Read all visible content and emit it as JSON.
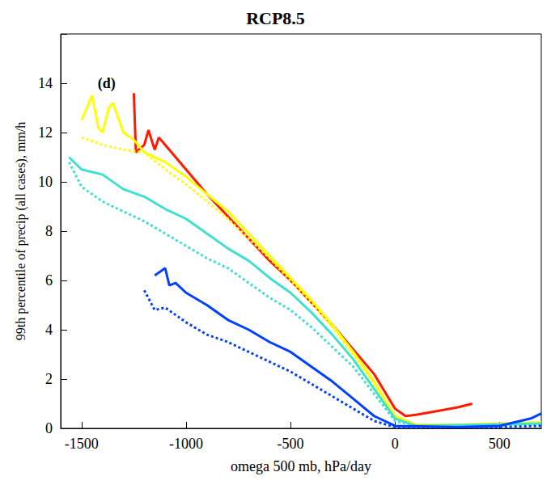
{
  "chart_data": {
    "type": "line",
    "title": "RCP8.5",
    "x_label": "omega 500 mb, hPa/day",
    "y_label": "99th percentile of precip (all cases), mm/h",
    "xlim": [
      -1600,
      700
    ],
    "xticks": [
      -1500,
      -1000,
      -500,
      0,
      500
    ],
    "ylim": [
      0,
      16
    ],
    "yticks": [
      0,
      2,
      4,
      6,
      8,
      10,
      12,
      14
    ],
    "grid": false,
    "annotations": [
      {
        "text": "(d)",
        "x": -1380,
        "y": 14
      }
    ],
    "series": [
      {
        "color": "#ff1a00",
        "line_style": "solid",
        "x": [
          -1250,
          -1240,
          -1200,
          -1180,
          -1150,
          -1130,
          -1100,
          -1050,
          -1000,
          -900,
          -800,
          -700,
          -600,
          -500,
          -400,
          -300,
          -200,
          -100,
          -50,
          0,
          50,
          100,
          200,
          300,
          370
        ],
        "values": [
          13.6,
          11.2,
          11.5,
          12.1,
          11.3,
          11.8,
          11.5,
          11.0,
          10.5,
          9.5,
          8.6,
          7.7,
          6.8,
          6.0,
          5.1,
          4.2,
          3.2,
          2.2,
          1.5,
          0.8,
          0.5,
          0.55,
          0.7,
          0.85,
          1.0
        ]
      },
      {
        "color": "#ffff00",
        "line_style": "solid",
        "x": [
          -1500,
          -1450,
          -1420,
          -1400,
          -1370,
          -1350,
          -1300,
          -1250,
          -1200,
          -1100,
          -1000,
          -900,
          -800,
          -700,
          -600,
          -500,
          -400,
          -300,
          -200,
          -100,
          0,
          100,
          300,
          500,
          700
        ],
        "values": [
          12.5,
          13.5,
          12.2,
          12.0,
          13.0,
          13.2,
          12.0,
          11.7,
          11.2,
          10.8,
          10.2,
          9.5,
          8.8,
          7.9,
          7.0,
          6.1,
          5.2,
          4.2,
          3.1,
          1.9,
          0.5,
          0.15,
          0.15,
          0.2,
          0.25
        ]
      },
      {
        "color": "#ffff00",
        "line_style": "dotted",
        "x": [
          -1500,
          -1400,
          -1300,
          -1200,
          -1100,
          -1000,
          -900,
          -800,
          -700,
          -600,
          -500,
          -400,
          -300,
          -200,
          -100,
          0,
          100,
          700
        ],
        "values": [
          11.8,
          11.5,
          11.3,
          11.2,
          10.5,
          9.9,
          9.2,
          8.5,
          7.7,
          6.9,
          6.0,
          5.1,
          4.1,
          3.0,
          1.8,
          0.4,
          0.1,
          0.15
        ]
      },
      {
        "color": "#40e0d0",
        "line_style": "solid",
        "x": [
          -1560,
          -1500,
          -1400,
          -1300,
          -1200,
          -1100,
          -1000,
          -900,
          -800,
          -700,
          -600,
          -500,
          -400,
          -300,
          -200,
          -100,
          0,
          100,
          700
        ],
        "values": [
          11.0,
          10.5,
          10.3,
          9.7,
          9.4,
          8.9,
          8.5,
          7.9,
          7.3,
          6.8,
          6.1,
          5.5,
          4.7,
          3.8,
          2.8,
          1.6,
          0.4,
          0.1,
          0.2
        ]
      },
      {
        "color": "#40e0d0",
        "line_style": "dotted",
        "x": [
          -1560,
          -1500,
          -1400,
          -1300,
          -1200,
          -1100,
          -1000,
          -900,
          -800,
          -700,
          -600,
          -500,
          -400,
          -300,
          -200,
          -100,
          0,
          100,
          700
        ],
        "values": [
          10.8,
          9.8,
          9.2,
          8.8,
          8.4,
          7.9,
          7.4,
          6.9,
          6.5,
          5.9,
          5.3,
          4.8,
          4.1,
          3.3,
          2.5,
          1.4,
          0.3,
          0.1,
          0.15
        ]
      },
      {
        "color": "#0040ff",
        "line_style": "solid",
        "x": [
          -1150,
          -1100,
          -1080,
          -1050,
          -1000,
          -900,
          -800,
          -700,
          -600,
          -500,
          -400,
          -300,
          -200,
          -100,
          0,
          300,
          500,
          650,
          700
        ],
        "values": [
          6.2,
          6.5,
          5.8,
          5.9,
          5.5,
          5.0,
          4.4,
          4.0,
          3.5,
          3.1,
          2.5,
          1.9,
          1.2,
          0.5,
          0.1,
          0.05,
          0.1,
          0.4,
          0.6
        ]
      },
      {
        "color": "#0040ff",
        "line_style": "dotted",
        "x": [
          -1200,
          -1150,
          -1100,
          -1000,
          -900,
          -800,
          -700,
          -600,
          -500,
          -400,
          -300,
          -200,
          -100,
          0,
          500,
          700
        ],
        "values": [
          5.6,
          4.8,
          4.9,
          4.3,
          3.8,
          3.5,
          3.1,
          2.7,
          2.3,
          1.8,
          1.3,
          0.8,
          0.3,
          0.05,
          0.05,
          0.1
        ]
      }
    ]
  }
}
